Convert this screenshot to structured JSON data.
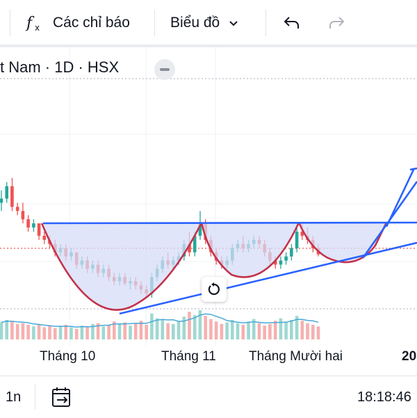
{
  "toolbar": {
    "indicators_label": "Các chỉ báo",
    "chart_type_label": "Biểu đồ"
  },
  "symbol": {
    "title": "t Nam · 1D · HSX"
  },
  "chart_data": {
    "type": "candlestick",
    "x_labels": [
      "Tháng 10",
      "Tháng 11",
      "Tháng Mười hai",
      "20"
    ],
    "colors": {
      "up": "#26a69a",
      "down": "#ef5350",
      "drawing": "#2962ff",
      "arc": "#c2334d",
      "fill": "#d6dcf7"
    },
    "candles": [
      [
        103,
        106,
        101,
        104
      ],
      [
        104,
        108,
        103,
        107
      ],
      [
        107,
        109,
        101,
        102
      ],
      [
        102,
        103,
        100,
        101
      ],
      [
        101,
        103,
        98,
        99
      ],
      [
        99,
        100,
        96,
        97
      ],
      [
        97,
        99,
        96,
        98
      ],
      [
        98,
        98,
        94,
        95
      ],
      [
        95,
        96,
        93,
        94
      ],
      [
        94,
        95,
        92,
        93
      ],
      [
        93,
        94,
        90,
        91
      ],
      [
        91,
        93,
        90,
        92
      ],
      [
        92,
        93,
        89,
        90
      ],
      [
        90,
        92,
        89,
        91
      ],
      [
        91,
        91,
        87,
        88
      ],
      [
        88,
        90,
        87,
        89
      ],
      [
        89,
        90,
        86,
        87
      ],
      [
        87,
        89,
        86,
        88
      ],
      [
        88,
        89,
        85,
        86
      ],
      [
        86,
        88,
        85,
        87
      ],
      [
        87,
        88,
        84,
        85
      ],
      [
        85,
        86,
        83,
        84
      ],
      [
        84,
        86,
        83,
        85
      ],
      [
        85,
        86,
        83,
        83.5
      ],
      [
        83.5,
        85,
        82,
        84
      ],
      [
        84,
        85,
        82,
        83
      ],
      [
        83,
        84,
        81,
        82
      ],
      [
        82,
        83,
        80,
        81
      ],
      [
        81,
        86,
        80,
        85
      ],
      [
        85,
        88,
        84,
        87
      ],
      [
        87,
        90,
        86,
        89
      ],
      [
        89,
        91,
        87,
        88
      ],
      [
        88,
        90,
        87,
        89
      ],
      [
        89,
        91,
        88,
        90
      ],
      [
        90,
        94,
        89,
        93
      ],
      [
        93,
        96,
        90,
        91
      ],
      [
        91,
        96,
        90,
        95
      ],
      [
        95,
        101,
        94,
        98
      ],
      [
        98,
        99,
        93,
        94
      ],
      [
        94,
        95,
        90,
        91
      ],
      [
        91,
        92,
        88,
        89
      ],
      [
        89,
        90,
        87,
        88
      ],
      [
        88,
        90,
        87,
        89
      ],
      [
        89,
        93,
        88,
        92
      ],
      [
        92,
        94,
        91,
        93
      ],
      [
        93,
        95,
        91,
        92
      ],
      [
        92,
        94,
        91,
        93
      ],
      [
        93,
        95,
        92,
        94
      ],
      [
        94,
        95,
        92,
        93
      ],
      [
        93,
        94,
        90,
        91
      ],
      [
        91,
        92,
        88,
        89
      ],
      [
        89,
        90,
        87,
        88
      ],
      [
        88,
        90,
        87,
        89
      ],
      [
        89,
        91,
        88,
        90
      ],
      [
        90,
        93,
        89,
        92
      ],
      [
        92,
        97,
        91,
        96
      ],
      [
        96,
        98,
        94,
        95
      ],
      [
        95,
        97,
        93,
        94
      ],
      [
        94,
        95,
        91,
        92
      ],
      [
        92,
        93,
        90,
        90.5
      ]
    ],
    "volumes": [
      2.1,
      2.4,
      2.2,
      1.9,
      2.0,
      1.8,
      1.6,
      1.9,
      1.5,
      1.7,
      1.4,
      1.6,
      1.8,
      1.5,
      1.3,
      1.7,
      1.5,
      1.9,
      2.0,
      1.6,
      1.8,
      2.2,
      1.9,
      2.1,
      1.7,
      2.0,
      2.3,
      1.8,
      3.2,
      2.6,
      2.4,
      2.0,
      1.9,
      2.2,
      2.8,
      3.4,
      3.0,
      3.6,
      2.9,
      2.5,
      2.2,
      1.9,
      2.1,
      2.4,
      2.0,
      1.8,
      2.2,
      2.5,
      2.0,
      1.7,
      1.9,
      2.3,
      2.6,
      2.1,
      2.4,
      2.9,
      2.3,
      2.0,
      1.8,
      1.6
    ]
  },
  "reset": {
    "icon": "rotate-icon"
  },
  "bottombar": {
    "interval_label": "1n",
    "time": "18:18:46"
  }
}
